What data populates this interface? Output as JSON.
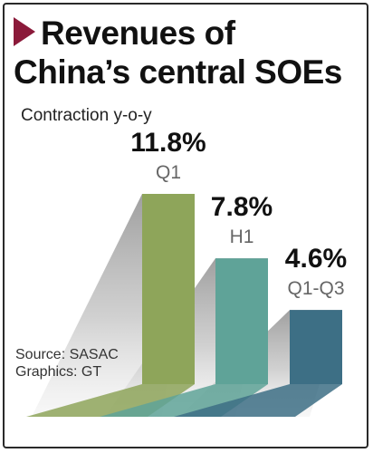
{
  "title_line1": "Revenues of",
  "title_line2": "China’s central SOEs",
  "subtitle": "Contraction y-o-y",
  "source": "Source: SASAC",
  "graphics": "Graphics: GT",
  "colors": {
    "accent": "#8b1a3a",
    "bar_colors": [
      "#8ea55a",
      "#5fa398",
      "#3d6f85"
    ]
  },
  "chart_data": {
    "type": "bar",
    "title": "Revenues of China’s central SOEs",
    "subtitle": "Contraction y-o-y",
    "categories": [
      "Q1",
      "H1",
      "Q1-Q3"
    ],
    "values": [
      11.8,
      7.8,
      4.6
    ],
    "value_labels": [
      "11.8%",
      "7.8%",
      "4.6%"
    ],
    "unit": "%",
    "ylim": [
      0,
      11.8
    ],
    "grid": false,
    "legend": "none"
  }
}
